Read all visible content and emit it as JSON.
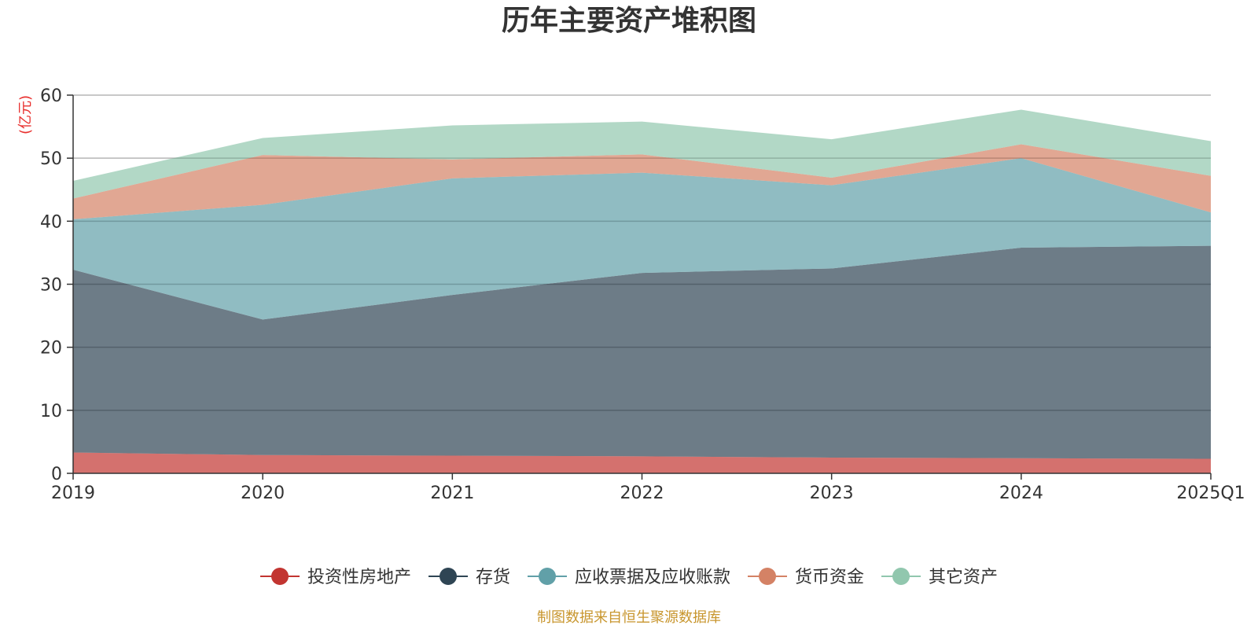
{
  "chart_data": {
    "type": "area",
    "stacked": true,
    "title": "历年主要资产堆积图",
    "unit": "(亿元)",
    "source": "制图数据来自恒生聚源数据库",
    "categories": [
      "2019",
      "2020",
      "2021",
      "2022",
      "2023",
      "2024",
      "2025Q1"
    ],
    "y_ticks": [
      "0",
      "10",
      "20",
      "30",
      "40",
      "50",
      "60"
    ],
    "ylim": [
      0,
      60
    ],
    "grid": true,
    "legend_position": "bottom",
    "series": [
      {
        "name": "投资性房地产",
        "color": "#c23531",
        "values": [
          3.3,
          2.9,
          2.8,
          2.7,
          2.5,
          2.4,
          2.3
        ]
      },
      {
        "name": "存货",
        "color": "#2f4554",
        "values": [
          29.0,
          21.5,
          25.5,
          29.1,
          30.0,
          33.4,
          33.8
        ]
      },
      {
        "name": "应收票据及应收账款",
        "color": "#61a0a8",
        "values": [
          8.0,
          18.2,
          18.5,
          15.9,
          13.2,
          14.2,
          5.3
        ]
      },
      {
        "name": "货币资金",
        "color": "#d48265",
        "values": [
          3.3,
          7.9,
          3.0,
          2.9,
          1.2,
          2.2,
          5.8
        ]
      },
      {
        "name": "其它资产",
        "color": "#91c7ae",
        "values": [
          2.8,
          2.7,
          5.4,
          5.2,
          6.1,
          5.5,
          5.5
        ]
      }
    ]
  }
}
